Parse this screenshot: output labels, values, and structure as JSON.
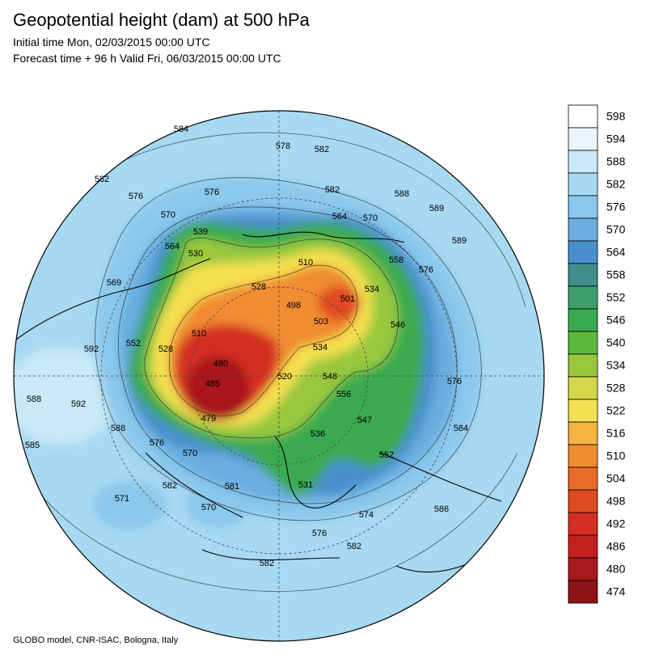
{
  "header": {
    "title": "Geopotential height (dam) at 500 hPa",
    "subtitle_1": "Initial time Mon, 02/03/2015 00:00 UTC",
    "subtitle_2": "Forecast time + 96 h Valid Fri, 06/03/2015 00:00 UTC"
  },
  "colorbar": {
    "levels": [
      598,
      594,
      588,
      582,
      576,
      570,
      564,
      558,
      552,
      546,
      540,
      534,
      528,
      522,
      516,
      510,
      504,
      498,
      492,
      486,
      480,
      474
    ],
    "colors": [
      "#ffffff",
      "#eaf6fc",
      "#c9e9f7",
      "#a8d9f2",
      "#8ac8ec",
      "#6aaee0",
      "#4a8fcc",
      "#3f8f8c",
      "#3e9e6a",
      "#3aaa50",
      "#5cb83c",
      "#99c83c",
      "#d4d84a",
      "#f4e050",
      "#f5b443",
      "#f08c30",
      "#ea6a28",
      "#e04a22",
      "#d42e20",
      "#c4201e",
      "#a8181c",
      "#8c1418"
    ]
  },
  "map": {
    "contour_labels": [
      584,
      578,
      582,
      582,
      576,
      576,
      582,
      588,
      589,
      570,
      564,
      570,
      539,
      589,
      564,
      530,
      510,
      558,
      576,
      569,
      528,
      498,
      501,
      503,
      534,
      546,
      592,
      552,
      528,
      510,
      534,
      576,
      480,
      520,
      548,
      485,
      556,
      592,
      588,
      479,
      536,
      547,
      584,
      588,
      576,
      570,
      552,
      585,
      582,
      581,
      531,
      574,
      586,
      571,
      570,
      576,
      582,
      582
    ]
  },
  "footer": "GLOBO model, CNR-ISAC, Bologna, Italy"
}
